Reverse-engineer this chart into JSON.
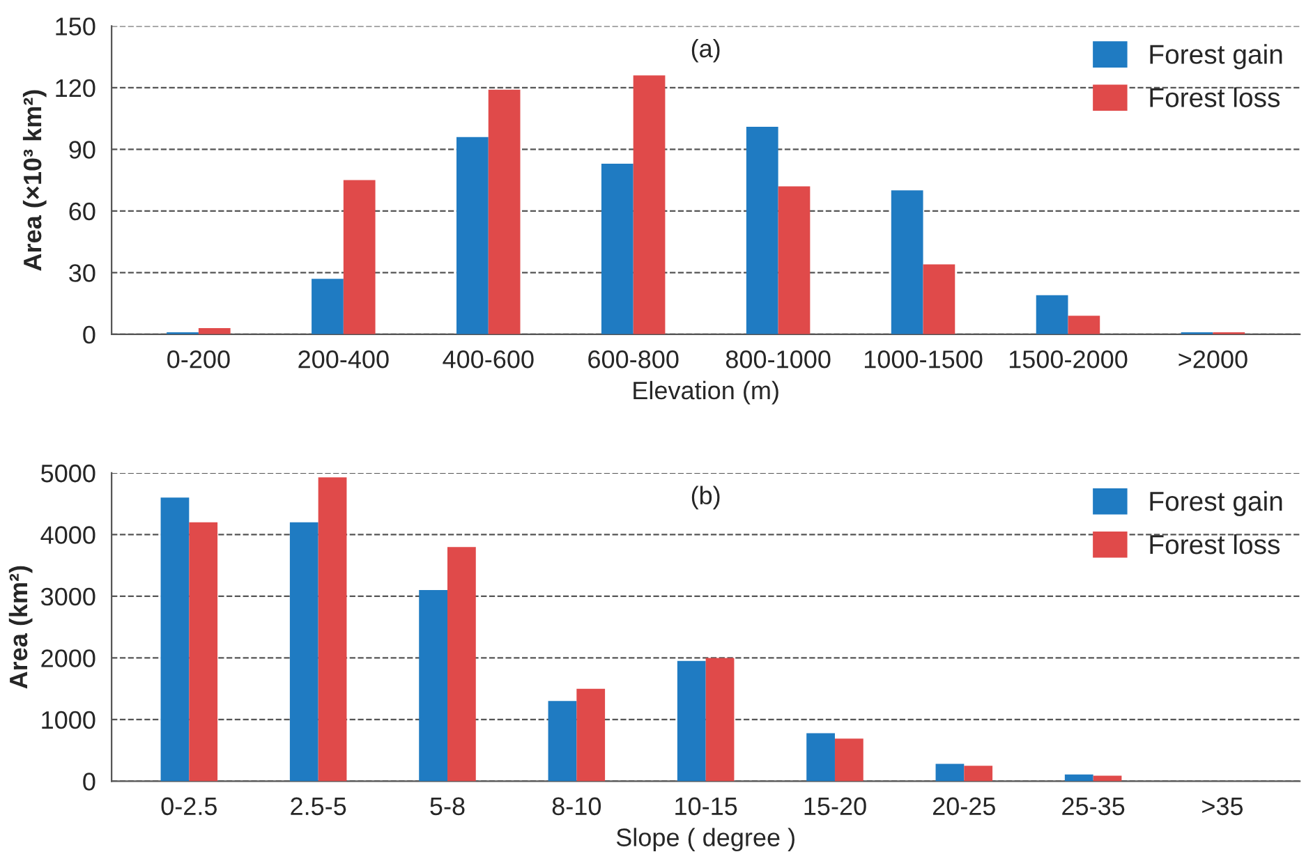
{
  "chart_data": [
    {
      "type": "bar",
      "annotations": [
        "(a)"
      ],
      "xlabel": "Elevation (m)",
      "ylabel": "Area (×10³ km²)",
      "categories": [
        "0-200",
        "200-400",
        "400-600",
        "600-800",
        "800-1000",
        "1000-1500",
        "1500-2000",
        ">2000"
      ],
      "series": [
        {
          "name": "Forest gain",
          "color": "#1f7bc2",
          "values": [
            1,
            27,
            96,
            83,
            101,
            70,
            19,
            1
          ]
        },
        {
          "name": "Forest loss",
          "color": "#e04a4a",
          "values": [
            3,
            75,
            119,
            126,
            72,
            34,
            9,
            1
          ]
        }
      ],
      "ylim": [
        0,
        150
      ],
      "yticks": [
        0,
        30,
        60,
        90,
        120,
        150
      ],
      "grid": "y",
      "legend": "top right"
    },
    {
      "type": "bar",
      "annotations": [
        "(b)"
      ],
      "xlabel": "Slope ( degree )",
      "ylabel": "Area (km²)",
      "categories": [
        "0-2.5",
        "2.5-5",
        "5-8",
        "8-10",
        "10-15",
        "15-20",
        "20-25",
        "25-35",
        ">35"
      ],
      "series": [
        {
          "name": "Forest gain",
          "color": "#1f7bc2",
          "values": [
            4600,
            4200,
            3100,
            1300,
            1950,
            780,
            280,
            110,
            0
          ]
        },
        {
          "name": "Forest loss",
          "color": "#e04a4a",
          "values": [
            4200,
            4930,
            3800,
            1500,
            2000,
            690,
            250,
            90,
            0
          ]
        }
      ],
      "ylim": [
        0,
        5000
      ],
      "yticks": [
        0,
        1000,
        2000,
        3000,
        4000,
        5000
      ],
      "grid": "y",
      "legend": "top right"
    }
  ]
}
